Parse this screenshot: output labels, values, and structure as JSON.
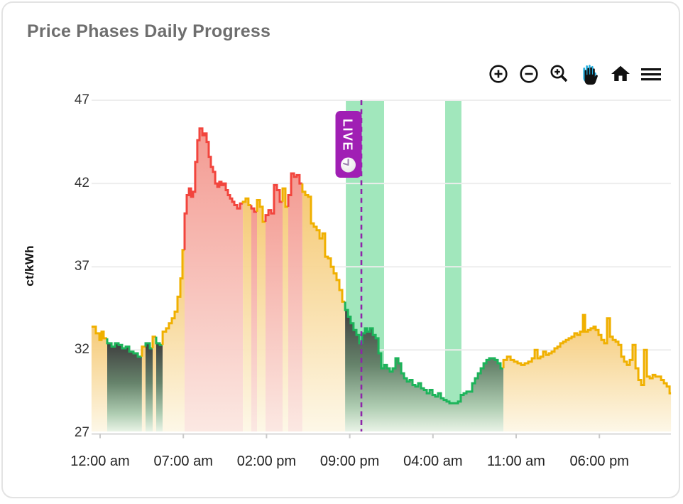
{
  "card": {
    "title": "Price Phases Daily Progress"
  },
  "toolbar": {
    "active_tool": "pan",
    "accent_color": "#22aede",
    "icons": [
      {
        "name": "zoom-in-icon",
        "label": "Zoom in"
      },
      {
        "name": "zoom-out-icon",
        "label": "Zoom out"
      },
      {
        "name": "box-zoom-icon",
        "label": "Zoom"
      },
      {
        "name": "pan-icon",
        "label": "Pan"
      },
      {
        "name": "home-icon",
        "label": "Reset axes"
      },
      {
        "name": "menu-icon",
        "label": "Menu"
      }
    ]
  },
  "chart_data": {
    "type": "area",
    "subtype": "step-line-phases",
    "title": "Price Phases Daily Progress",
    "xlabel": "",
    "ylabel": "ct/kWh",
    "ylim": [
      27,
      47
    ],
    "yticks": [
      47,
      42,
      37,
      32,
      27
    ],
    "xticks": [
      "12:00 am",
      "07:00 am",
      "02:00 pm",
      "09:00 pm",
      "04:00 am",
      "11:00 am",
      "06:00 pm"
    ],
    "xtick_interval_hours": 7,
    "grid": true,
    "legend": "none",
    "time_start_h": -0.72,
    "time_end_h": 48.03,
    "live_marker": {
      "label": "LIVE",
      "time_h": 21.98,
      "icon": "clock-icon",
      "color": "#a01fb4",
      "line_color": "#8e24aa"
    },
    "highlight_bands_h": [
      [
        20.67,
        23.89
      ],
      [
        29.03,
        30.4
      ]
    ],
    "band_color": "rgba(30,198,96,0.42)",
    "phases": {
      "y": {
        "name": "medium-price",
        "line": "#f0b000",
        "fill_top": "#f5c76f",
        "fill_bottom": "#fdf7e6"
      },
      "r": {
        "name": "high-price",
        "line": "#f2453d",
        "fill_top": "#f3958c",
        "fill_bottom": "#fbe7e1"
      },
      "g": {
        "name": "low-price",
        "line": "#1cb45a",
        "fill_top": "#3f3f3f",
        "fill_mid": "#66836b",
        "fill_low": "#afcdb2",
        "fill_bottom": "#e9f3e6"
      }
    },
    "steps": [
      [
        -0.72,
        33.4,
        "y"
      ],
      [
        -0.36,
        33.0,
        "y"
      ],
      [
        -0.06,
        32.6,
        "y"
      ],
      [
        0.12,
        33.1,
        "y"
      ],
      [
        0.3,
        32.7,
        "y"
      ],
      [
        0.6,
        32.4,
        "g"
      ],
      [
        0.96,
        32.2,
        "g"
      ],
      [
        1.25,
        32.4,
        "g"
      ],
      [
        1.55,
        32.3,
        "g"
      ],
      [
        1.85,
        32.1,
        "g"
      ],
      [
        2.15,
        32.2,
        "g"
      ],
      [
        2.45,
        31.9,
        "g"
      ],
      [
        2.81,
        31.8,
        "g"
      ],
      [
        3.17,
        31.6,
        "g"
      ],
      [
        3.52,
        32.2,
        "y"
      ],
      [
        3.82,
        32.4,
        "g"
      ],
      [
        4.18,
        32.1,
        "g"
      ],
      [
        4.42,
        32.8,
        "y"
      ],
      [
        4.72,
        32.4,
        "g"
      ],
      [
        5.02,
        32.3,
        "g"
      ],
      [
        5.26,
        33.1,
        "y"
      ],
      [
        5.55,
        33.3,
        "y"
      ],
      [
        5.79,
        33.6,
        "y"
      ],
      [
        6.03,
        33.9,
        "y"
      ],
      [
        6.27,
        34.3,
        "y"
      ],
      [
        6.51,
        35.2,
        "y"
      ],
      [
        6.75,
        36.3,
        "y"
      ],
      [
        6.93,
        38.0,
        "y"
      ],
      [
        7.11,
        40.2,
        "r"
      ],
      [
        7.29,
        41.3,
        "r"
      ],
      [
        7.47,
        41.7,
        "r"
      ],
      [
        7.65,
        41.2,
        "r"
      ],
      [
        7.82,
        41.5,
        "r"
      ],
      [
        8.0,
        43.3,
        "r"
      ],
      [
        8.18,
        44.6,
        "r"
      ],
      [
        8.36,
        45.3,
        "r"
      ],
      [
        8.6,
        44.9,
        "r"
      ],
      [
        8.78,
        45.0,
        "r"
      ],
      [
        8.96,
        44.5,
        "r"
      ],
      [
        9.14,
        43.6,
        "r"
      ],
      [
        9.32,
        43.0,
        "r"
      ],
      [
        9.5,
        42.7,
        "r"
      ],
      [
        9.68,
        42.0,
        "r"
      ],
      [
        9.86,
        41.8,
        "r"
      ],
      [
        10.03,
        42.1,
        "r"
      ],
      [
        10.21,
        41.9,
        "r"
      ],
      [
        10.39,
        42.0,
        "r"
      ],
      [
        10.57,
        41.6,
        "r"
      ],
      [
        10.75,
        41.3,
        "r"
      ],
      [
        10.93,
        41.1,
        "r"
      ],
      [
        11.11,
        40.9,
        "r"
      ],
      [
        11.29,
        40.7,
        "r"
      ],
      [
        11.53,
        40.5,
        "r"
      ],
      [
        11.77,
        40.8,
        "r"
      ],
      [
        12.01,
        40.9,
        "y"
      ],
      [
        12.24,
        41.1,
        "y"
      ],
      [
        12.48,
        40.7,
        "y"
      ],
      [
        12.72,
        40.5,
        "r"
      ],
      [
        12.96,
        40.3,
        "r"
      ],
      [
        13.2,
        41.0,
        "y"
      ],
      [
        13.44,
        40.6,
        "y"
      ],
      [
        13.68,
        39.7,
        "y"
      ],
      [
        13.92,
        40.1,
        "r"
      ],
      [
        14.16,
        40.4,
        "r"
      ],
      [
        14.39,
        40.2,
        "r"
      ],
      [
        14.63,
        41.9,
        "r"
      ],
      [
        14.87,
        41.6,
        "r"
      ],
      [
        15.11,
        40.9,
        "r"
      ],
      [
        15.35,
        41.7,
        "y"
      ],
      [
        15.59,
        40.6,
        "y"
      ],
      [
        15.83,
        41.3,
        "r"
      ],
      [
        16.07,
        42.6,
        "r"
      ],
      [
        16.31,
        42.4,
        "r"
      ],
      [
        16.54,
        42.5,
        "r"
      ],
      [
        16.78,
        42.0,
        "r"
      ],
      [
        17.02,
        41.5,
        "y"
      ],
      [
        17.26,
        41.3,
        "y"
      ],
      [
        17.5,
        41.2,
        "y"
      ],
      [
        17.74,
        39.6,
        "y"
      ],
      [
        17.98,
        39.4,
        "y"
      ],
      [
        18.22,
        39.2,
        "y"
      ],
      [
        18.46,
        38.7,
        "y"
      ],
      [
        18.7,
        39.0,
        "y"
      ],
      [
        18.93,
        37.6,
        "y"
      ],
      [
        19.17,
        37.5,
        "y"
      ],
      [
        19.41,
        37.0,
        "y"
      ],
      [
        19.65,
        36.6,
        "y"
      ],
      [
        19.89,
        36.2,
        "y"
      ],
      [
        20.13,
        35.6,
        "y"
      ],
      [
        20.37,
        34.9,
        "y"
      ],
      [
        20.61,
        34.4,
        "g"
      ],
      [
        20.85,
        34.0,
        "g"
      ],
      [
        21.08,
        33.6,
        "g"
      ],
      [
        21.32,
        33.2,
        "g"
      ],
      [
        21.56,
        32.9,
        "g"
      ],
      [
        21.8,
        32.4,
        "g"
      ],
      [
        22.04,
        33.0,
        "g"
      ],
      [
        22.28,
        33.3,
        "g"
      ],
      [
        22.46,
        33.1,
        "g"
      ],
      [
        22.7,
        33.3,
        "g"
      ],
      [
        22.94,
        32.9,
        "g"
      ],
      [
        23.18,
        32.7,
        "g"
      ],
      [
        23.42,
        31.8,
        "g"
      ],
      [
        23.65,
        30.9,
        "g"
      ],
      [
        23.89,
        31.1,
        "g"
      ],
      [
        24.13,
        30.9,
        "g"
      ],
      [
        24.37,
        30.7,
        "g"
      ],
      [
        24.61,
        30.9,
        "g"
      ],
      [
        24.85,
        31.5,
        "g"
      ],
      [
        25.09,
        31.2,
        "g"
      ],
      [
        25.33,
        30.6,
        "g"
      ],
      [
        25.57,
        30.3,
        "g"
      ],
      [
        25.81,
        30.1,
        "g"
      ],
      [
        26.04,
        30.2,
        "g"
      ],
      [
        26.28,
        29.9,
        "g"
      ],
      [
        26.52,
        29.8,
        "g"
      ],
      [
        26.76,
        30.0,
        "g"
      ],
      [
        27.0,
        29.7,
        "g"
      ],
      [
        27.24,
        29.6,
        "g"
      ],
      [
        27.48,
        29.4,
        "g"
      ],
      [
        27.72,
        29.6,
        "g"
      ],
      [
        27.96,
        29.3,
        "g"
      ],
      [
        28.19,
        29.2,
        "g"
      ],
      [
        28.43,
        29.4,
        "g"
      ],
      [
        28.67,
        29.1,
        "g"
      ],
      [
        28.91,
        29.0,
        "g"
      ],
      [
        29.15,
        28.9,
        "g"
      ],
      [
        29.39,
        28.8,
        "g"
      ],
      [
        29.63,
        28.8,
        "g"
      ],
      [
        29.87,
        28.8,
        "g"
      ],
      [
        30.11,
        28.9,
        "g"
      ],
      [
        30.34,
        29.3,
        "g"
      ],
      [
        30.58,
        29.4,
        "g"
      ],
      [
        30.82,
        29.5,
        "g"
      ],
      [
        31.06,
        29.5,
        "g"
      ],
      [
        31.3,
        30.0,
        "g"
      ],
      [
        31.54,
        30.3,
        "g"
      ],
      [
        31.78,
        30.6,
        "g"
      ],
      [
        32.02,
        30.9,
        "g"
      ],
      [
        32.26,
        31.2,
        "g"
      ],
      [
        32.5,
        31.4,
        "g"
      ],
      [
        32.73,
        31.5,
        "g"
      ],
      [
        32.97,
        31.5,
        "g"
      ],
      [
        33.21,
        31.4,
        "g"
      ],
      [
        33.45,
        31.2,
        "g"
      ],
      [
        33.69,
        30.9,
        "g"
      ],
      [
        33.93,
        31.4,
        "y"
      ],
      [
        34.23,
        31.6,
        "y"
      ],
      [
        34.53,
        31.4,
        "y"
      ],
      [
        34.82,
        31.3,
        "y"
      ],
      [
        35.12,
        31.2,
        "y"
      ],
      [
        35.42,
        31.1,
        "y"
      ],
      [
        35.72,
        31.2,
        "y"
      ],
      [
        36.02,
        31.3,
        "y"
      ],
      [
        36.32,
        31.5,
        "y"
      ],
      [
        36.56,
        32.0,
        "y"
      ],
      [
        36.8,
        31.5,
        "y"
      ],
      [
        37.03,
        31.6,
        "y"
      ],
      [
        37.27,
        31.9,
        "y"
      ],
      [
        37.51,
        31.7,
        "y"
      ],
      [
        37.75,
        31.8,
        "y"
      ],
      [
        37.99,
        31.9,
        "y"
      ],
      [
        38.23,
        32.1,
        "y"
      ],
      [
        38.47,
        32.2,
        "y"
      ],
      [
        38.71,
        32.4,
        "y"
      ],
      [
        38.95,
        32.5,
        "y"
      ],
      [
        39.18,
        32.6,
        "y"
      ],
      [
        39.42,
        32.7,
        "y"
      ],
      [
        39.66,
        32.8,
        "y"
      ],
      [
        39.9,
        33.0,
        "y"
      ],
      [
        40.14,
        32.9,
        "y"
      ],
      [
        40.38,
        33.1,
        "y"
      ],
      [
        40.62,
        34.1,
        "y"
      ],
      [
        40.8,
        33.1,
        "y"
      ],
      [
        41.04,
        33.2,
        "y"
      ],
      [
        41.27,
        33.3,
        "y"
      ],
      [
        41.51,
        33.4,
        "y"
      ],
      [
        41.69,
        33.2,
        "y"
      ],
      [
        41.93,
        32.9,
        "y"
      ],
      [
        42.17,
        32.6,
        "y"
      ],
      [
        42.41,
        32.4,
        "y"
      ],
      [
        42.65,
        33.9,
        "y"
      ],
      [
        42.89,
        32.8,
        "y"
      ],
      [
        43.13,
        32.6,
        "y"
      ],
      [
        43.37,
        32.5,
        "y"
      ],
      [
        43.6,
        32.3,
        "y"
      ],
      [
        43.84,
        31.6,
        "y"
      ],
      [
        44.08,
        31.3,
        "y"
      ],
      [
        44.32,
        31.1,
        "y"
      ],
      [
        44.56,
        31.4,
        "y"
      ],
      [
        44.8,
        32.3,
        "y"
      ],
      [
        45.04,
        30.9,
        "y"
      ],
      [
        45.28,
        30.2,
        "y"
      ],
      [
        45.52,
        29.9,
        "y"
      ],
      [
        45.76,
        32.0,
        "y"
      ],
      [
        46.0,
        30.4,
        "y"
      ],
      [
        46.24,
        30.3,
        "y"
      ],
      [
        46.48,
        30.5,
        "y"
      ],
      [
        46.71,
        30.4,
        "y"
      ],
      [
        46.95,
        30.4,
        "y"
      ],
      [
        47.19,
        30.2,
        "y"
      ],
      [
        47.43,
        30.0,
        "y"
      ],
      [
        47.67,
        29.8,
        "y"
      ],
      [
        47.91,
        29.4,
        "y"
      ]
    ]
  }
}
